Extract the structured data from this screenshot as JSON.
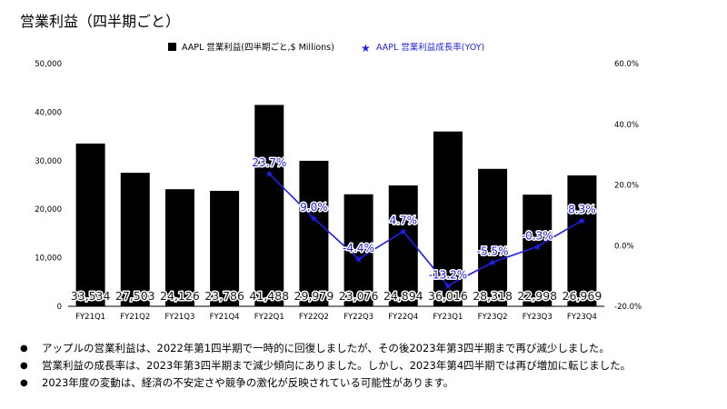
{
  "title": "営業利益（四半期ごと）",
  "chart_data": {
    "type": "bar+line",
    "categories": [
      "FY21Q1",
      "FY21Q2",
      "FY21Q3",
      "FY21Q4",
      "FY22Q1",
      "FY22Q2",
      "FY22Q3",
      "FY22Q4",
      "FY23Q1",
      "FY23Q2",
      "FY23Q3",
      "FY23Q4"
    ],
    "series": [
      {
        "name": "AAPL 営業利益(四半期ごと,$ Millions)",
        "type": "bar",
        "axis": "left",
        "color": "#000000",
        "values": [
          33534,
          27503,
          24126,
          23786,
          41488,
          29979,
          23076,
          24894,
          36016,
          28318,
          22998,
          26969
        ],
        "labels": [
          "33,534",
          "27,503",
          "24,126",
          "23,786",
          "41,488",
          "29,979",
          "23,076",
          "24,894",
          "36,016",
          "28,318",
          "22,998",
          "26,969"
        ]
      },
      {
        "name": "AAPL 営業利益成長率(YOY)",
        "type": "line",
        "axis": "right",
        "color": "#1f1fe8",
        "marker": "star",
        "values": [
          null,
          null,
          null,
          null,
          23.7,
          9.0,
          -4.4,
          4.7,
          -13.2,
          -5.5,
          -0.3,
          8.3
        ],
        "labels": [
          null,
          null,
          null,
          null,
          "23.7%",
          "9.0%",
          "-4.4%",
          "4.7%",
          "-13.2%",
          "-5.5%",
          "-0.3%",
          "8.3%"
        ]
      }
    ],
    "y_left": {
      "min": 0,
      "max": 50000,
      "ticks": [
        "0",
        "10,000",
        "20,000",
        "30,000",
        "40,000",
        "50,000"
      ]
    },
    "y_right": {
      "min": -20,
      "max": 60,
      "ticks": [
        "-20.0%",
        "0.0%",
        "20.0%",
        "40.0%",
        "60.0%"
      ]
    },
    "legend_position": "top",
    "grid": false
  },
  "bullets": [
    "アップルの営業利益は、2022年第1四半期で一時的に回復しましたが、その後2023年第3四半期まで再び減少しました。",
    "営業利益の成長率は、2023年第3四半期まで減少傾向にありました。しかし、2023年第4四半期では再び増加に転じました。",
    "2023年度の変動は、経済の不安定さや競争の激化が反映されている可能性があります。"
  ]
}
